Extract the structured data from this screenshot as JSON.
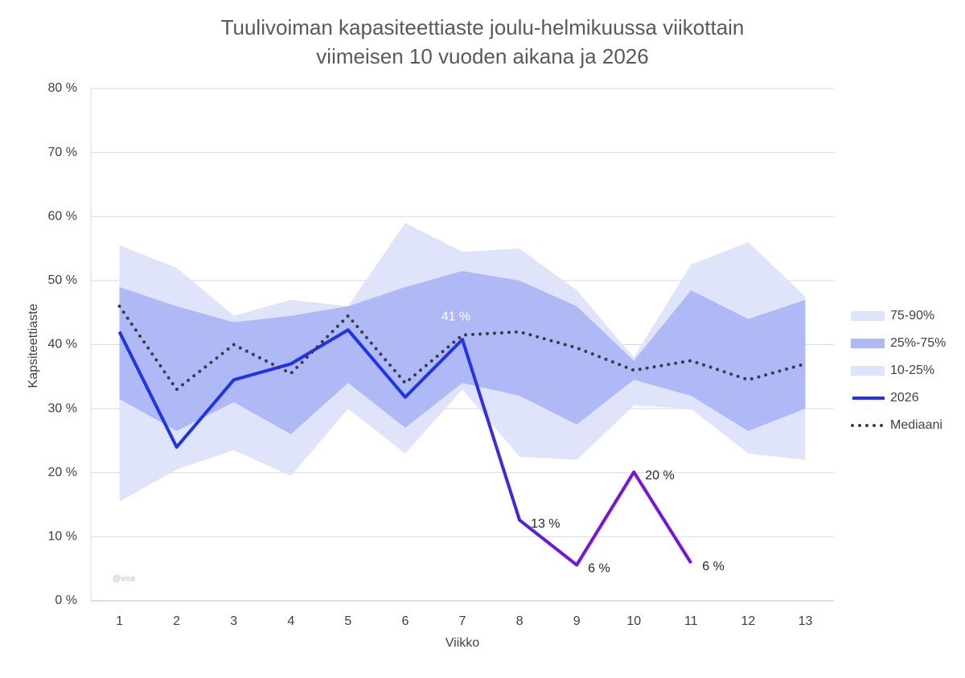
{
  "chart_data": {
    "type": "line",
    "title": [
      "Tuulivoiman kapasiteettiaste joulu-helmikuussa viikottain",
      "viimeisen 10 vuoden aikana ja 2026"
    ],
    "x_label": "Viikko",
    "y_label": "Kapsiteettiaste",
    "watermark": "@visa",
    "categories": [
      "1",
      "2",
      "3",
      "4",
      "5",
      "6",
      "7",
      "8",
      "9",
      "10",
      "11",
      "12",
      "13"
    ],
    "ylim": [
      0,
      80
    ],
    "yticks": [
      {
        "value": 0,
        "label": "0 %"
      },
      {
        "value": 10,
        "label": "10 %"
      },
      {
        "value": 20,
        "label": "20 %"
      },
      {
        "value": 30,
        "label": "30 %"
      },
      {
        "value": 40,
        "label": "40 %"
      },
      {
        "value": 50,
        "label": "50 %"
      },
      {
        "value": 60,
        "label": "60 %"
      },
      {
        "value": 70,
        "label": "70 %"
      },
      {
        "value": 80,
        "label": "80 %"
      }
    ],
    "grid": true,
    "bands": [
      {
        "name": "75-90%",
        "color": "#e0e4fb",
        "low": [
          49,
          46,
          43.5,
          44.5,
          46,
          49,
          51.5,
          50,
          46,
          37.5,
          48.5,
          44,
          47
        ],
        "high": [
          55.5,
          52,
          44.5,
          47,
          46,
          59,
          54.5,
          55,
          48.5,
          38,
          52.5,
          56,
          47.5
        ]
      },
      {
        "name": "25%-75%",
        "color": "#aeb9f6",
        "low": [
          31.5,
          26.5,
          31,
          26,
          34,
          27,
          34,
          32,
          27.5,
          34.5,
          32,
          26.5,
          30
        ],
        "high": [
          49,
          46,
          43.5,
          44.5,
          46,
          49,
          51.5,
          50,
          46,
          37.5,
          48.5,
          44,
          47
        ]
      },
      {
        "name": "10-25%",
        "color": "#e0e4fb",
        "low": [
          15.5,
          20.5,
          23.5,
          19.5,
          30,
          23,
          33,
          22.5,
          22,
          30.5,
          30,
          23,
          22
        ],
        "high": [
          31.5,
          26.5,
          31,
          26,
          34,
          27,
          34,
          32,
          27.5,
          34.5,
          32,
          26.5,
          30
        ]
      }
    ],
    "series": [
      {
        "name": "2026",
        "color": "#1e34ea",
        "color_end": "#7a10e4",
        "style": "solid",
        "values": [
          42,
          24,
          34.5,
          37,
          42.3,
          31.8,
          40.8,
          12.6,
          5.6,
          20.1,
          5.9,
          null,
          null
        ],
        "value_labels": [
          null,
          null,
          null,
          null,
          null,
          null,
          "41 %",
          "13 %",
          "6 %",
          "20 %",
          "6 %",
          null,
          null
        ]
      },
      {
        "name": "Mediaani",
        "color": "#3b3b45",
        "style": "dotted",
        "values": [
          46,
          33,
          40,
          35.5,
          44.5,
          34,
          41.5,
          42,
          39.5,
          36,
          37.5,
          34.5,
          37
        ]
      }
    ],
    "legend": "right"
  }
}
